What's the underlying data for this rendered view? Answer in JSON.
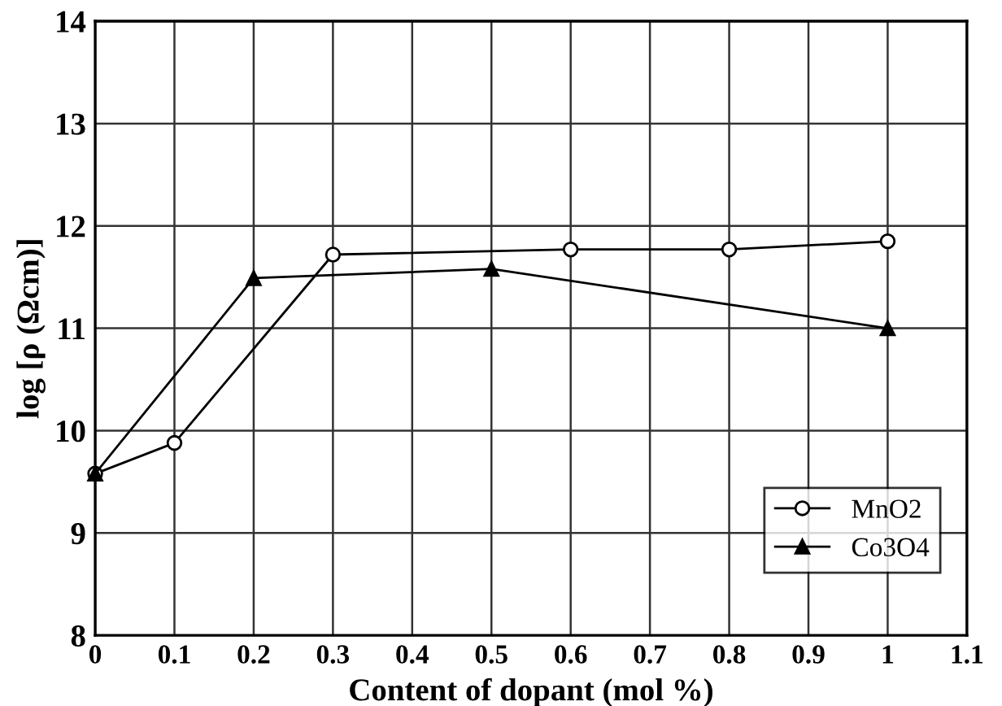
{
  "chart_data": {
    "type": "line",
    "xlabel": "Content of dopant (mol %)",
    "ylabel": "log [ρ (Ωcm)]",
    "xlim": [
      0,
      1.1
    ],
    "xticks": [
      0,
      0.1,
      0.2,
      0.3,
      0.4,
      0.5,
      0.6,
      0.7,
      0.8,
      0.9,
      1,
      1.1
    ],
    "ylim": [
      8,
      14
    ],
    "yticks": [
      8,
      9,
      10,
      11,
      12,
      13,
      14
    ],
    "grid": true,
    "legend": "bottom right",
    "series": [
      {
        "name": "MnO2",
        "color": "#000000",
        "marker": "circle",
        "x": [
          0,
          0.1,
          0.3,
          0.6,
          0.8,
          1.0
        ],
        "values": [
          9.58,
          9.88,
          11.72,
          11.77,
          11.77,
          11.85
        ]
      },
      {
        "name": "Co3O4",
        "color": "#000000",
        "marker": "triangle",
        "x": [
          0,
          0.2,
          0.5,
          1.0
        ],
        "values": [
          9.58,
          11.49,
          11.58,
          11.0
        ]
      }
    ]
  }
}
